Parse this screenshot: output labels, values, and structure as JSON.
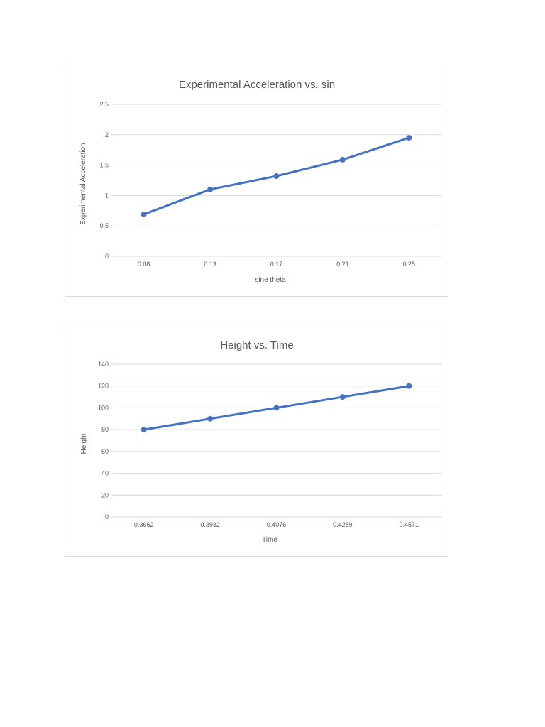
{
  "chart_data": [
    {
      "type": "line",
      "title": "Experimental Acceleration vs. sin",
      "xlabel": "sine theta",
      "ylabel": "Experimental Acceleration",
      "categories": [
        "0.08",
        "0.13",
        "0.17",
        "0.21",
        "0.25"
      ],
      "series": [
        {
          "values": [
            0.69,
            1.1,
            1.32,
            1.59,
            1.95
          ]
        }
      ],
      "ylim": [
        0,
        2.5
      ],
      "yticks": [
        "0",
        "0.5",
        "1",
        "1.5",
        "2",
        "2.5"
      ],
      "grid": true,
      "legend": "none",
      "color": "#4472c4"
    },
    {
      "type": "line",
      "title": "Height vs. Time",
      "xlabel": "Time",
      "ylabel": "Height",
      "categories": [
        "0.3662",
        "0.3932",
        "0.4076",
        "0.4289",
        "0.4571"
      ],
      "series": [
        {
          "values": [
            80,
            90,
            100,
            110,
            120
          ]
        }
      ],
      "ylim": [
        0,
        140
      ],
      "yticks": [
        "0",
        "20",
        "40",
        "60",
        "80",
        "100",
        "120",
        "140"
      ],
      "grid": true,
      "legend": "none",
      "color": "#4472c4"
    }
  ]
}
